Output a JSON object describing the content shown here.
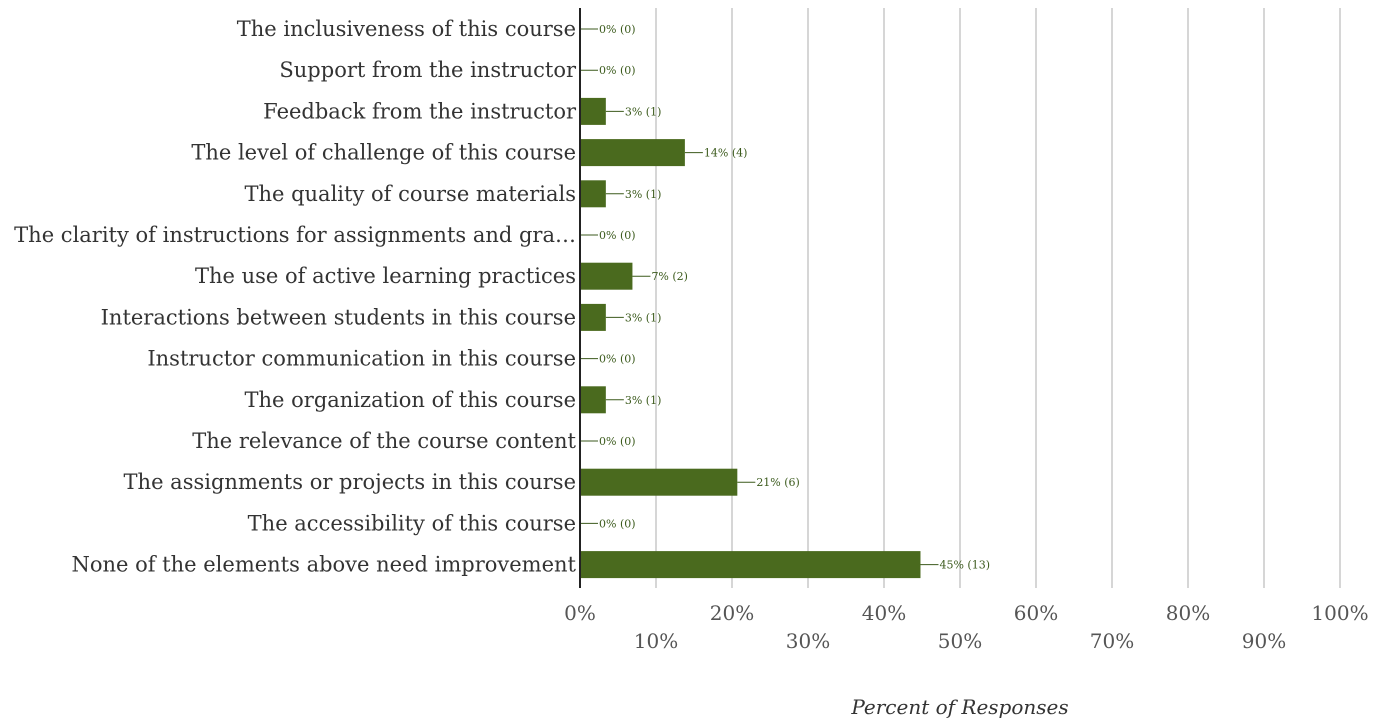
{
  "chart_data": {
    "type": "bar",
    "orientation": "horizontal",
    "categories": [
      "The inclusiveness of this course",
      "Support from the instructor",
      "Feedback from the instructor",
      "The level of challenge of this course",
      "The quality of course materials",
      "The clarity of instructions for assignments and gra…",
      "The use of active learning practices",
      "Interactions between students in this course",
      "Instructor communication in this course",
      "The organization of this course",
      "The relevance of the course content",
      "The assignments or projects in this course",
      "The accessibility of this course",
      "None of the elements above need improvement"
    ],
    "values": [
      0,
      0,
      3.4,
      13.8,
      3.4,
      0,
      6.9,
      3.4,
      0,
      3.4,
      0,
      20.7,
      0,
      44.8
    ],
    "data_labels": [
      "0% (0)",
      "0% (0)",
      "3% (1)",
      "14% (4)",
      "3% (1)",
      "0% (0)",
      "7% (2)",
      "3% (1)",
      "0% (0)",
      "3% (1)",
      "0% (0)",
      "21% (6)",
      "0% (0)",
      "45% (13)"
    ],
    "xlim": [
      0,
      100
    ],
    "x_ticks": [
      "0%",
      "10%",
      "20%",
      "30%",
      "40%",
      "50%",
      "60%",
      "70%",
      "80%",
      "90%",
      "100%"
    ],
    "xlabel": "Percent of Responses",
    "ylabel": "",
    "title": "",
    "grid": "vertical",
    "legend": "none",
    "bar_color": "#4a6a1e",
    "label_color": "#3b5a1c",
    "grid_color": "#c8c8c8"
  }
}
